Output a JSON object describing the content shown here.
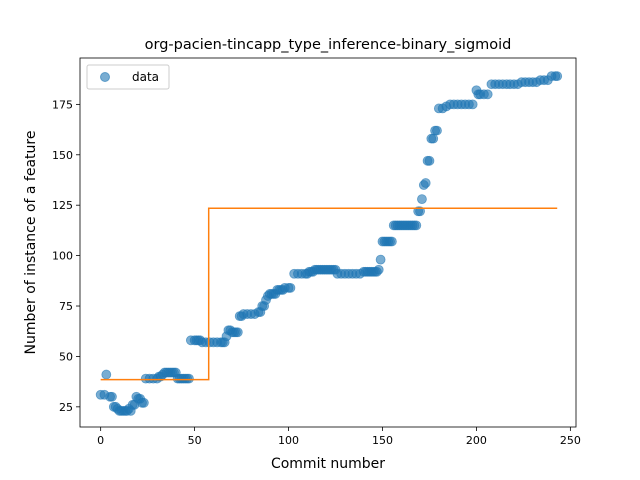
{
  "chart_data": {
    "type": "scatter",
    "title": "org-pacien-tincapp_type_inference-binary_sigmoid",
    "xlabel": "Commit number",
    "ylabel": "Number of instance of a feature",
    "xlim": [
      -11,
      253
    ],
    "ylim": [
      15,
      198
    ],
    "xticks": [
      0,
      50,
      100,
      150,
      200,
      250
    ],
    "yticks": [
      25,
      50,
      75,
      100,
      125,
      150,
      175
    ],
    "legend": {
      "entries": [
        "data"
      ],
      "placement": "top-left"
    },
    "colors": {
      "data": "#1f77b4",
      "fit": "#ff7f0e"
    },
    "series": [
      {
        "name": "data",
        "kind": "scatter",
        "points": [
          [
            0,
            31
          ],
          [
            2,
            31
          ],
          [
            3,
            41
          ],
          [
            5,
            30
          ],
          [
            6,
            30
          ],
          [
            7,
            25
          ],
          [
            8,
            25
          ],
          [
            9,
            24
          ],
          [
            10,
            23
          ],
          [
            11,
            23
          ],
          [
            12,
            23
          ],
          [
            13,
            23
          ],
          [
            14,
            23
          ],
          [
            15,
            24
          ],
          [
            16,
            23
          ],
          [
            17,
            26
          ],
          [
            18,
            26
          ],
          [
            19,
            30
          ],
          [
            20,
            29
          ],
          [
            21,
            29
          ],
          [
            22,
            27
          ],
          [
            23,
            27
          ],
          [
            24,
            39
          ],
          [
            26,
            39
          ],
          [
            28,
            39
          ],
          [
            30,
            39
          ],
          [
            31,
            40
          ],
          [
            32,
            40
          ],
          [
            33,
            41
          ],
          [
            34,
            42
          ],
          [
            35,
            42
          ],
          [
            36,
            42
          ],
          [
            37,
            42
          ],
          [
            38,
            42
          ],
          [
            39,
            42
          ],
          [
            40,
            42
          ],
          [
            41,
            39
          ],
          [
            42,
            39
          ],
          [
            43,
            39
          ],
          [
            44,
            39
          ],
          [
            45,
            39
          ],
          [
            46,
            39
          ],
          [
            47,
            39
          ],
          [
            48,
            58
          ],
          [
            50,
            58
          ],
          [
            51,
            58
          ],
          [
            52,
            58
          ],
          [
            53,
            58
          ],
          [
            54,
            57
          ],
          [
            56,
            57
          ],
          [
            58,
            57
          ],
          [
            60,
            57
          ],
          [
            62,
            57
          ],
          [
            64,
            57
          ],
          [
            65,
            57
          ],
          [
            66,
            57
          ],
          [
            67,
            60
          ],
          [
            68,
            63
          ],
          [
            69,
            63
          ],
          [
            70,
            62
          ],
          [
            71,
            62
          ],
          [
            72,
            62
          ],
          [
            73,
            62
          ],
          [
            74,
            70
          ],
          [
            75,
            70
          ],
          [
            76,
            71
          ],
          [
            78,
            71
          ],
          [
            80,
            71
          ],
          [
            82,
            71
          ],
          [
            84,
            72
          ],
          [
            85,
            72
          ],
          [
            86,
            75
          ],
          [
            87,
            75
          ],
          [
            88,
            78
          ],
          [
            89,
            80
          ],
          [
            90,
            81
          ],
          [
            91,
            81
          ],
          [
            92,
            81
          ],
          [
            93,
            81
          ],
          [
            94,
            83
          ],
          [
            95,
            83
          ],
          [
            96,
            83
          ],
          [
            97,
            83
          ],
          [
            98,
            84
          ],
          [
            100,
            84
          ],
          [
            101,
            84
          ],
          [
            103,
            91
          ],
          [
            105,
            91
          ],
          [
            107,
            91
          ],
          [
            109,
            91
          ],
          [
            110,
            91
          ],
          [
            111,
            92
          ],
          [
            112,
            92
          ],
          [
            113,
            92
          ],
          [
            114,
            93
          ],
          [
            115,
            93
          ],
          [
            116,
            93
          ],
          [
            117,
            93
          ],
          [
            118,
            93
          ],
          [
            119,
            93
          ],
          [
            120,
            93
          ],
          [
            121,
            93
          ],
          [
            122,
            93
          ],
          [
            123,
            93
          ],
          [
            124,
            93
          ],
          [
            125,
            93
          ],
          [
            126,
            91
          ],
          [
            128,
            91
          ],
          [
            130,
            91
          ],
          [
            132,
            91
          ],
          [
            134,
            91
          ],
          [
            136,
            91
          ],
          [
            138,
            91
          ],
          [
            140,
            92
          ],
          [
            141,
            92
          ],
          [
            142,
            92
          ],
          [
            143,
            92
          ],
          [
            144,
            92
          ],
          [
            145,
            92
          ],
          [
            146,
            92
          ],
          [
            147,
            92
          ],
          [
            148,
            93
          ],
          [
            149,
            98
          ],
          [
            150,
            107
          ],
          [
            151,
            107
          ],
          [
            152,
            107
          ],
          [
            153,
            107
          ],
          [
            154,
            107
          ],
          [
            155,
            107
          ],
          [
            156,
            115
          ],
          [
            157,
            115
          ],
          [
            158,
            115
          ],
          [
            159,
            115
          ],
          [
            160,
            115
          ],
          [
            161,
            115
          ],
          [
            162,
            115
          ],
          [
            163,
            115
          ],
          [
            164,
            115
          ],
          [
            165,
            115
          ],
          [
            166,
            115
          ],
          [
            167,
            115
          ],
          [
            168,
            115
          ],
          [
            169,
            122
          ],
          [
            170,
            122
          ],
          [
            171,
            128
          ],
          [
            172,
            135
          ],
          [
            173,
            136
          ],
          [
            174,
            147
          ],
          [
            175,
            147
          ],
          [
            176,
            158
          ],
          [
            177,
            158
          ],
          [
            178,
            162
          ],
          [
            179,
            162
          ],
          [
            180,
            173
          ],
          [
            182,
            173
          ],
          [
            184,
            174
          ],
          [
            186,
            175
          ],
          [
            188,
            175
          ],
          [
            190,
            175
          ],
          [
            192,
            175
          ],
          [
            194,
            175
          ],
          [
            196,
            175
          ],
          [
            198,
            175
          ],
          [
            200,
            182
          ],
          [
            201,
            180
          ],
          [
            202,
            180
          ],
          [
            204,
            180
          ],
          [
            206,
            180
          ],
          [
            208,
            185
          ],
          [
            210,
            185
          ],
          [
            212,
            185
          ],
          [
            214,
            185
          ],
          [
            216,
            185
          ],
          [
            218,
            185
          ],
          [
            220,
            185
          ],
          [
            222,
            185
          ],
          [
            224,
            186
          ],
          [
            226,
            186
          ],
          [
            228,
            186
          ],
          [
            230,
            186
          ],
          [
            232,
            186
          ],
          [
            234,
            187
          ],
          [
            236,
            187
          ],
          [
            238,
            187
          ],
          [
            240,
            189
          ],
          [
            242,
            189
          ],
          [
            243,
            189
          ]
        ]
      },
      {
        "name": "",
        "kind": "line",
        "x": [
          0,
          57.5,
          57.5,
          243
        ],
        "y": [
          38.5,
          38.5,
          123.5,
          123.5
        ]
      }
    ]
  }
}
